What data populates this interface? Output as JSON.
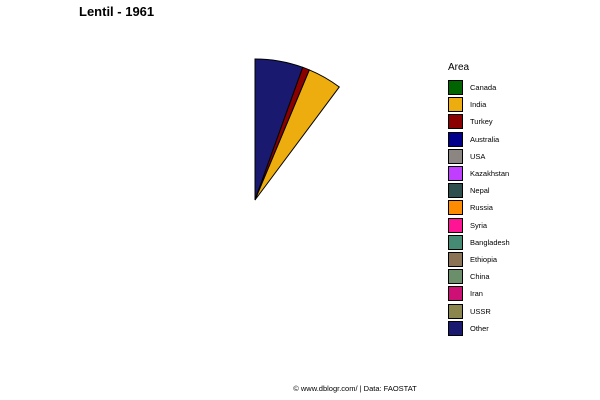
{
  "chart_data": {
    "type": "pie",
    "title": "Lentil - 1961",
    "legend": {
      "title": "Area",
      "placement": "right",
      "entries": [
        {
          "name": "Canada",
          "color": "#006400"
        },
        {
          "name": "India",
          "color": "#EEAD0E"
        },
        {
          "name": "Turkey",
          "color": "#8B0000"
        },
        {
          "name": "Australia",
          "color": "#00008B"
        },
        {
          "name": "USA",
          "color": "#8B8682"
        },
        {
          "name": "Kazakhstan",
          "color": "#BF3EFF"
        },
        {
          "name": "Nepal",
          "color": "#2F4F4F"
        },
        {
          "name": "Russia",
          "color": "#FF8C00"
        },
        {
          "name": "Syria",
          "color": "#FF1493"
        },
        {
          "name": "Bangladesh",
          "color": "#458B74"
        },
        {
          "name": "Ethiopia",
          "color": "#8B7355"
        },
        {
          "name": "China",
          "color": "#6B8E6B"
        },
        {
          "name": "Iran",
          "color": "#CD1076"
        },
        {
          "name": "USSR",
          "color": "#8B864E"
        },
        {
          "name": "Other",
          "color": "#191970"
        }
      ]
    },
    "slices": [
      {
        "name": "Other",
        "value": 0.055,
        "color": "#191970"
      },
      {
        "name": "Turkey",
        "value": 0.008,
        "color": "#8B0000"
      },
      {
        "name": "India",
        "value": 0.039,
        "color": "#EEAD0E"
      }
    ]
  },
  "footer": "© www.dblogr.com/  |  Data: FAOSTAT"
}
